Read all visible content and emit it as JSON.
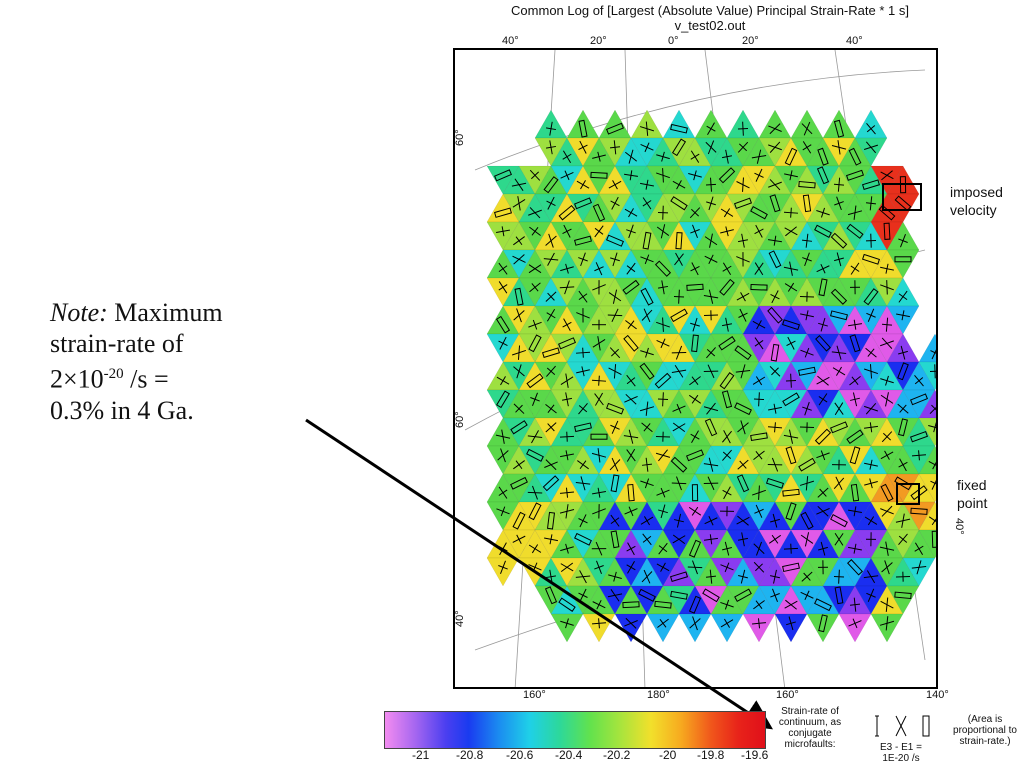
{
  "title": {
    "line1": "Common Log of [Largest (Absolute Value) Principal Strain-Rate * 1 s]",
    "line2": "v_test02.out"
  },
  "note": {
    "label": "Note:",
    "line1_rest": "Maximum",
    "line2": "strain-rate of",
    "line3_base": "2×10",
    "line3_exp": "-20",
    "line3_rest": " /s =",
    "line4": "0.3% in 4 Ga."
  },
  "labels": {
    "imposed_1": "imposed",
    "imposed_2": "velocity",
    "fixed_1": "fixed",
    "fixed_2": "point"
  },
  "ticks": {
    "top": [
      "40°",
      "20°",
      "0°",
      "20°",
      "40°"
    ],
    "bottom": [
      "160°",
      "180°",
      "160°",
      "140°"
    ],
    "left": [
      "60°",
      "60°",
      "40°"
    ],
    "right": [
      "40°"
    ]
  },
  "colorbar": {
    "ticks": [
      "-21",
      "-20.8",
      "-20.6",
      "-20.4",
      "-20.2",
      "-20",
      "-19.8",
      "-19.6"
    ],
    "caption": [
      "Strain-rate of",
      "continuum, as",
      "conjugate",
      "microfaults:"
    ]
  },
  "legend": {
    "scale_1": "E3 - E1 =",
    "scale_2": "1E-20 /s",
    "area_1": "(Area is",
    "area_2": "proportional to",
    "area_3": "strain-rate.)"
  },
  "colors": {
    "magenta": "#e05ae8",
    "purple": "#8a3cf0",
    "blue": "#1a2ef0",
    "lightblue": "#1eb4f0",
    "cyan": "#24d8d0",
    "teal": "#2ed88c",
    "green": "#5ad84a",
    "lime": "#9ee040",
    "yellow": "#f0dc2c",
    "orange": "#f29a22",
    "red": "#e8301c"
  }
}
